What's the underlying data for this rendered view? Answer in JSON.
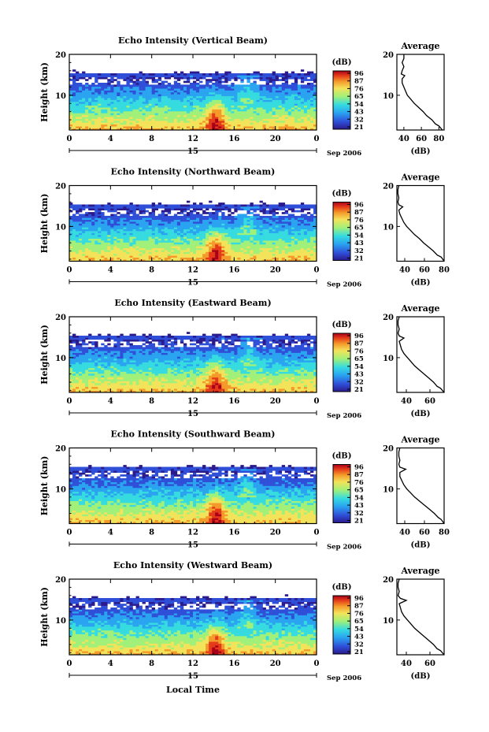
{
  "figure": {
    "xlabel": "Local Time",
    "date_label": "15",
    "month_label": "Sep 2006",
    "colorbar_unit": "(dB)",
    "colors": [
      "#2a1a8c",
      "#2f4fd8",
      "#2aa3f0",
      "#36dbe0",
      "#a0f07a",
      "#f3e35a",
      "#f49a2a",
      "#e43a1a",
      "#a8001a"
    ]
  },
  "chart_data": [
    {
      "type": "heatmap",
      "title": "Echo Intensity (Vertical Beam)",
      "ylabel": "Height (km)",
      "x_ticks": [
        "0",
        "4",
        "8",
        "12",
        "16",
        "20",
        "0"
      ],
      "y_ticks": [
        "20",
        "10"
      ],
      "xlim": [
        0,
        24
      ],
      "ylim": [
        1.5,
        20
      ],
      "colorbar_ticks": [
        "96",
        "87",
        "76",
        "65",
        "54",
        "43",
        "32",
        "21"
      ],
      "average_profile": {
        "title": "Average",
        "xlabel": "(dB)",
        "x_ticks": [
          "40",
          "60",
          "80"
        ],
        "y_ticks": [
          "20",
          "10"
        ],
        "xlim": [
          32,
          86
        ],
        "points": [
          [
            84,
            1.5
          ],
          [
            80,
            2.5
          ],
          [
            76,
            3
          ],
          [
            72,
            4
          ],
          [
            66,
            5
          ],
          [
            62,
            6
          ],
          [
            57,
            7
          ],
          [
            52,
            8
          ],
          [
            48,
            9
          ],
          [
            44,
            10
          ],
          [
            42,
            11
          ],
          [
            40,
            12
          ],
          [
            38,
            13
          ],
          [
            38,
            14
          ],
          [
            41,
            14.8
          ],
          [
            37,
            15.2
          ],
          [
            38,
            16
          ],
          [
            40,
            17
          ],
          [
            38,
            18
          ],
          [
            40,
            19
          ],
          [
            40,
            20
          ]
        ]
      }
    },
    {
      "type": "heatmap",
      "title": "Echo Intensity (Northward Beam)",
      "ylabel": "Height (km)",
      "x_ticks": [
        "0",
        "4",
        "8",
        "12",
        "16",
        "20",
        "0"
      ],
      "y_ticks": [
        "20",
        "10"
      ],
      "xlim": [
        0,
        24
      ],
      "ylim": [
        1.5,
        20
      ],
      "colorbar_ticks": [
        "96",
        "87",
        "76",
        "65",
        "54",
        "43",
        "32",
        "21"
      ],
      "average_profile": {
        "title": "Average",
        "xlabel": "(dB)",
        "x_ticks": [
          "40",
          "60",
          "80"
        ],
        "y_ticks": [
          "20",
          "10"
        ],
        "xlim": [
          32,
          80
        ],
        "points": [
          [
            80,
            1.5
          ],
          [
            77,
            2.5
          ],
          [
            73,
            3
          ],
          [
            69,
            4
          ],
          [
            64,
            5
          ],
          [
            59,
            6
          ],
          [
            55,
            7
          ],
          [
            50,
            8
          ],
          [
            46,
            9
          ],
          [
            42,
            10
          ],
          [
            39,
            11
          ],
          [
            37,
            12
          ],
          [
            35,
            13
          ],
          [
            34,
            14
          ],
          [
            38,
            14.8
          ],
          [
            34,
            15.3
          ],
          [
            33,
            16
          ],
          [
            34,
            17
          ],
          [
            33,
            18
          ],
          [
            33,
            19
          ],
          [
            34,
            20
          ]
        ]
      }
    },
    {
      "type": "heatmap",
      "title": "Echo Intensity (Eastward Beam)",
      "ylabel": "Height (km)",
      "x_ticks": [
        "0",
        "4",
        "8",
        "12",
        "16",
        "20",
        "0"
      ],
      "y_ticks": [
        "20",
        "10"
      ],
      "xlim": [
        0,
        24
      ],
      "ylim": [
        1.5,
        20
      ],
      "colorbar_ticks": [
        "96",
        "87",
        "76",
        "65",
        "54",
        "43",
        "32",
        "21"
      ],
      "average_profile": {
        "title": "Average",
        "xlabel": "(dB)",
        "x_ticks": [
          "40",
          "60"
        ],
        "y_ticks": [
          "20",
          "10"
        ],
        "xlim": [
          32,
          72
        ],
        "points": [
          [
            72,
            1.5
          ],
          [
            69,
            2.5
          ],
          [
            66,
            3
          ],
          [
            63,
            4
          ],
          [
            59,
            5
          ],
          [
            55,
            6
          ],
          [
            51,
            7
          ],
          [
            47,
            8
          ],
          [
            44,
            9
          ],
          [
            41,
            10
          ],
          [
            38,
            11
          ],
          [
            36,
            12
          ],
          [
            35,
            13
          ],
          [
            34,
            14
          ],
          [
            38,
            14.8
          ],
          [
            34,
            15.3
          ],
          [
            33,
            16
          ],
          [
            34,
            17
          ],
          [
            33,
            18
          ],
          [
            33,
            19
          ],
          [
            34,
            20
          ]
        ]
      }
    },
    {
      "type": "heatmap",
      "title": "Echo Intensity (Southward Beam)",
      "ylabel": "Height (km)",
      "x_ticks": [
        "0",
        "4",
        "8",
        "12",
        "16",
        "20",
        "0"
      ],
      "y_ticks": [
        "20",
        "10"
      ],
      "xlim": [
        0,
        24
      ],
      "ylim": [
        1.5,
        20
      ],
      "colorbar_ticks": [
        "96",
        "87",
        "76",
        "65",
        "54",
        "43",
        "32",
        "21"
      ],
      "average_profile": {
        "title": "Average",
        "xlabel": "(dB)",
        "x_ticks": [
          "40",
          "60",
          "80"
        ],
        "y_ticks": [
          "20",
          "10"
        ],
        "xlim": [
          32,
          80
        ],
        "points": [
          [
            80,
            1.5
          ],
          [
            77,
            2.5
          ],
          [
            74,
            3
          ],
          [
            70,
            4
          ],
          [
            65,
            5
          ],
          [
            60,
            6
          ],
          [
            55,
            7
          ],
          [
            50,
            8
          ],
          [
            46,
            9
          ],
          [
            42,
            10
          ],
          [
            39,
            11
          ],
          [
            37,
            12
          ],
          [
            35,
            13
          ],
          [
            35,
            14
          ],
          [
            41,
            14.8
          ],
          [
            35,
            15.3
          ],
          [
            34,
            16
          ],
          [
            35,
            17
          ],
          [
            34,
            18
          ],
          [
            34,
            19
          ],
          [
            35,
            20
          ]
        ]
      }
    },
    {
      "type": "heatmap",
      "title": "Echo Intensity (Westward Beam)",
      "ylabel": "Height (km)",
      "x_ticks": [
        "0",
        "4",
        "8",
        "12",
        "16",
        "20",
        "0"
      ],
      "y_ticks": [
        "20",
        "10"
      ],
      "xlim": [
        0,
        24
      ],
      "ylim": [
        1.5,
        20
      ],
      "colorbar_ticks": [
        "96",
        "87",
        "76",
        "65",
        "54",
        "43",
        "32",
        "21"
      ],
      "average_profile": {
        "title": "Average",
        "xlabel": "(dB)",
        "x_ticks": [
          "40",
          "60"
        ],
        "y_ticks": [
          "20",
          "10"
        ],
        "xlim": [
          32,
          72
        ],
        "points": [
          [
            72,
            1.5
          ],
          [
            69,
            2.5
          ],
          [
            66,
            3
          ],
          [
            63,
            4
          ],
          [
            59,
            5
          ],
          [
            55,
            6
          ],
          [
            51,
            7
          ],
          [
            47,
            8
          ],
          [
            44,
            9
          ],
          [
            41,
            10
          ],
          [
            38,
            11
          ],
          [
            36,
            12
          ],
          [
            35,
            13
          ],
          [
            34,
            14
          ],
          [
            40,
            14.8
          ],
          [
            35,
            15.3
          ],
          [
            33,
            16
          ],
          [
            34,
            17
          ],
          [
            33,
            18
          ],
          [
            33,
            19
          ],
          [
            34,
            20
          ]
        ]
      }
    }
  ]
}
